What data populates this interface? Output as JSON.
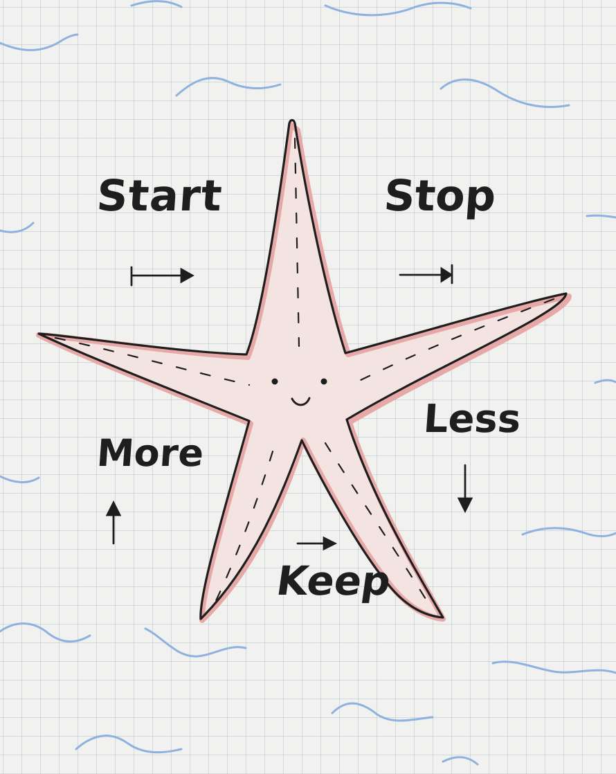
{
  "labels": {
    "start": "Start",
    "stop": "Stop",
    "more": "More",
    "less": "Less",
    "keep": "Keep"
  },
  "colors": {
    "paper": "#f1f2ef",
    "ink": "#1e1e1e",
    "starfish_fill": "#f3e4e2",
    "starfish_outline_shadow": "#e7a9a7",
    "wave": "#8fb1df"
  },
  "icons": {
    "start": "arrow-right-from-bar-icon",
    "stop": "arrow-right-to-bar-icon",
    "more": "arrow-up-icon",
    "less": "arrow-down-icon",
    "keep": "arrow-right-icon"
  }
}
